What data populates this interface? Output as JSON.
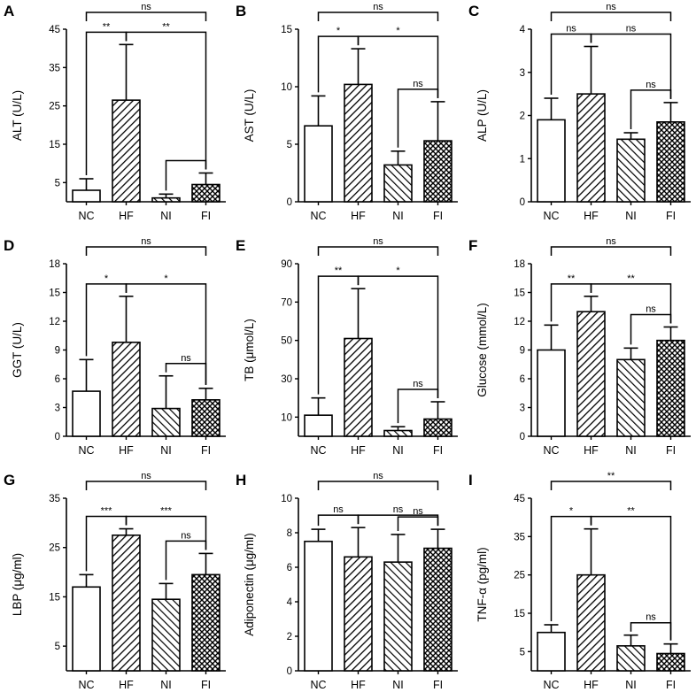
{
  "colors": {
    "ink": "#000000",
    "background": "#ffffff"
  },
  "chart_data": [
    {
      "panel": "A",
      "type": "bar",
      "ylabel": "ALT (U/L)",
      "categories": [
        "NC",
        "HF",
        "NI",
        "FI"
      ],
      "values": [
        3,
        26.5,
        1,
        4.5
      ],
      "errors": [
        3,
        14.5,
        1,
        3
      ],
      "ylim": [
        0,
        45
      ],
      "yticks": [
        5,
        15,
        25,
        35,
        45
      ],
      "brackets": [
        {
          "from": 0,
          "to": 1,
          "level": 0,
          "label": "**"
        },
        {
          "from": 1,
          "to": 3,
          "level": 0,
          "label": "**"
        },
        {
          "from": 2,
          "to": 3,
          "level": 0,
          "label": ""
        },
        {
          "from": 0,
          "to": 3,
          "level": 1,
          "label": "ns"
        }
      ]
    },
    {
      "panel": "B",
      "type": "bar",
      "ylabel": "AST (U/L)",
      "categories": [
        "NC",
        "HF",
        "NI",
        "FI"
      ],
      "values": [
        6.6,
        10.2,
        3.2,
        5.3
      ],
      "errors": [
        2.6,
        3.1,
        1.2,
        3.4
      ],
      "ylim": [
        0,
        15
      ],
      "yticks": [
        0,
        5,
        10,
        15
      ],
      "brackets": [
        {
          "from": 0,
          "to": 1,
          "level": 0,
          "label": "*"
        },
        {
          "from": 1,
          "to": 3,
          "level": 0,
          "label": "*"
        },
        {
          "from": 2,
          "to": 3,
          "level": 0,
          "label": "ns"
        },
        {
          "from": 0,
          "to": 3,
          "level": 1,
          "label": "ns"
        }
      ]
    },
    {
      "panel": "C",
      "type": "bar",
      "ylabel": "ALP (U/L)",
      "categories": [
        "NC",
        "HF",
        "NI",
        "FI"
      ],
      "values": [
        1.9,
        2.5,
        1.45,
        1.85
      ],
      "errors": [
        0.5,
        1.1,
        0.15,
        0.45
      ],
      "ylim": [
        0,
        4
      ],
      "yticks": [
        0,
        1,
        2,
        3,
        4
      ],
      "brackets": [
        {
          "from": 0,
          "to": 1,
          "level": 0,
          "label": "ns"
        },
        {
          "from": 1,
          "to": 3,
          "level": 0,
          "label": "ns"
        },
        {
          "from": 2,
          "to": 3,
          "level": 0,
          "label": "ns"
        },
        {
          "from": 0,
          "to": 3,
          "level": 1,
          "label": "ns"
        }
      ]
    },
    {
      "panel": "D",
      "type": "bar",
      "ylabel": "GGT (U/L)",
      "categories": [
        "NC",
        "HF",
        "NI",
        "FI"
      ],
      "values": [
        4.7,
        9.8,
        2.9,
        3.8
      ],
      "errors": [
        3.3,
        4.8,
        3.4,
        1.2
      ],
      "ylim": [
        0,
        18
      ],
      "yticks": [
        0,
        3,
        6,
        9,
        12,
        15,
        18
      ],
      "brackets": [
        {
          "from": 0,
          "to": 1,
          "level": 0,
          "label": "*"
        },
        {
          "from": 1,
          "to": 3,
          "level": 0,
          "label": "*"
        },
        {
          "from": 2,
          "to": 3,
          "level": 0,
          "label": "ns"
        },
        {
          "from": 0,
          "to": 3,
          "level": 1,
          "label": "ns"
        }
      ]
    },
    {
      "panel": "E",
      "type": "bar",
      "ylabel": "TB (μmol/L)",
      "categories": [
        "NC",
        "HF",
        "NI",
        "FI"
      ],
      "values": [
        11,
        51,
        3,
        9
      ],
      "errors": [
        9,
        26,
        2,
        9
      ],
      "ylim": [
        0,
        90
      ],
      "yticks": [
        10,
        30,
        50,
        70,
        90
      ],
      "brackets": [
        {
          "from": 0,
          "to": 1,
          "level": 0,
          "label": "**"
        },
        {
          "from": 1,
          "to": 3,
          "level": 0,
          "label": "*"
        },
        {
          "from": 2,
          "to": 3,
          "level": 0,
          "label": "ns"
        },
        {
          "from": 0,
          "to": 3,
          "level": 1,
          "label": "ns"
        }
      ]
    },
    {
      "panel": "F",
      "type": "bar",
      "ylabel": "Glucose (mmol/L)",
      "categories": [
        "NC",
        "HF",
        "NI",
        "FI"
      ],
      "values": [
        9,
        13,
        8,
        10
      ],
      "errors": [
        2.6,
        1.6,
        1.2,
        1.4
      ],
      "ylim": [
        0,
        18
      ],
      "yticks": [
        0,
        3,
        6,
        9,
        12,
        15,
        18
      ],
      "brackets": [
        {
          "from": 0,
          "to": 1,
          "level": 0,
          "label": "**"
        },
        {
          "from": 1,
          "to": 3,
          "level": 0,
          "label": "**"
        },
        {
          "from": 2,
          "to": 3,
          "level": 0,
          "label": "ns"
        },
        {
          "from": 0,
          "to": 3,
          "level": 1,
          "label": "ns"
        }
      ]
    },
    {
      "panel": "G",
      "type": "bar",
      "ylabel": "LBP (μg/ml)",
      "categories": [
        "NC",
        "HF",
        "NI",
        "FI"
      ],
      "values": [
        17,
        27.5,
        14.5,
        19.5
      ],
      "errors": [
        2.5,
        1.3,
        3.2,
        4.3
      ],
      "ylim": [
        0,
        35
      ],
      "yticks": [
        5,
        15,
        25,
        35
      ],
      "brackets": [
        {
          "from": 0,
          "to": 1,
          "level": 0,
          "label": "***"
        },
        {
          "from": 1,
          "to": 3,
          "level": 0,
          "label": "***"
        },
        {
          "from": 2,
          "to": 3,
          "level": 0,
          "label": "ns"
        },
        {
          "from": 0,
          "to": 3,
          "level": 1,
          "label": "ns"
        }
      ]
    },
    {
      "panel": "H",
      "type": "bar",
      "ylabel": "Adiponectin (μg/ml)",
      "categories": [
        "NC",
        "HF",
        "NI",
        "FI"
      ],
      "values": [
        7.5,
        6.6,
        6.3,
        7.1
      ],
      "errors": [
        0.7,
        1.7,
        1.6,
        1.1
      ],
      "ylim": [
        0,
        10
      ],
      "yticks": [
        0,
        2,
        4,
        6,
        8,
        10
      ],
      "brackets": [
        {
          "from": 0,
          "to": 1,
          "level": 0,
          "label": "ns"
        },
        {
          "from": 1,
          "to": 3,
          "level": 0,
          "label": "ns"
        },
        {
          "from": 2,
          "to": 3,
          "level": 0,
          "label": "ns"
        },
        {
          "from": 0,
          "to": 3,
          "level": 1,
          "label": "ns"
        }
      ]
    },
    {
      "panel": "I",
      "type": "bar",
      "ylabel": "TNF-α (pg/ml)",
      "categories": [
        "NC",
        "HF",
        "NI",
        "FI"
      ],
      "values": [
        10,
        25,
        6.5,
        4.5
      ],
      "errors": [
        2,
        12,
        2.8,
        2.5
      ],
      "ylim": [
        0,
        45
      ],
      "yticks": [
        5,
        15,
        25,
        35,
        45
      ],
      "brackets": [
        {
          "from": 0,
          "to": 1,
          "level": 0,
          "label": "*"
        },
        {
          "from": 1,
          "to": 3,
          "level": 0,
          "label": "**"
        },
        {
          "from": 2,
          "to": 3,
          "level": 0,
          "label": "ns"
        },
        {
          "from": 0,
          "to": 3,
          "level": 1,
          "label": "**"
        }
      ]
    }
  ]
}
